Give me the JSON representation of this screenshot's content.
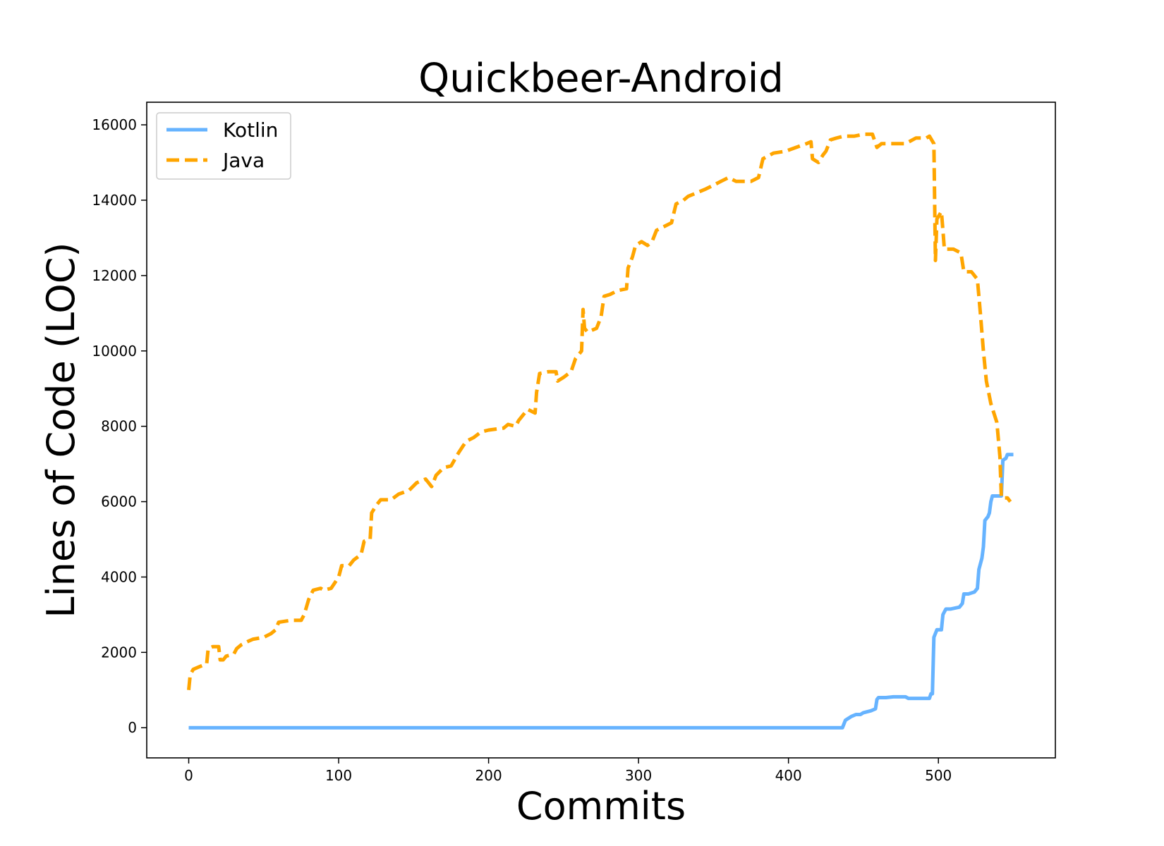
{
  "chart_data": {
    "type": "line",
    "title": "Quickbeer-Android",
    "xlabel": "Commits",
    "ylabel": "Lines of Code (LOC)",
    "xlim": [
      -28,
      578
    ],
    "ylim": [
      -800,
      16600
    ],
    "xticks": [
      0,
      100,
      200,
      300,
      400,
      500
    ],
    "yticks": [
      0,
      2000,
      4000,
      6000,
      8000,
      10000,
      12000,
      14000,
      16000
    ],
    "grid": false,
    "legend": "upper left",
    "series": [
      {
        "name": "Kotlin",
        "color": "#66b3ff",
        "style": "solid",
        "points": [
          [
            0,
            0
          ],
          [
            436,
            0
          ],
          [
            437,
            100
          ],
          [
            438,
            200
          ],
          [
            442,
            300
          ],
          [
            445,
            350
          ],
          [
            448,
            350
          ],
          [
            450,
            400
          ],
          [
            455,
            450
          ],
          [
            458,
            500
          ],
          [
            459,
            750
          ],
          [
            460,
            800
          ],
          [
            465,
            800
          ],
          [
            470,
            820
          ],
          [
            478,
            820
          ],
          [
            480,
            780
          ],
          [
            490,
            780
          ],
          [
            494,
            780
          ],
          [
            495,
            900
          ],
          [
            496,
            900
          ],
          [
            497,
            2400
          ],
          [
            499,
            2600
          ],
          [
            502,
            2600
          ],
          [
            503,
            3000
          ],
          [
            505,
            3150
          ],
          [
            508,
            3150
          ],
          [
            514,
            3200
          ],
          [
            516,
            3300
          ],
          [
            517,
            3550
          ],
          [
            520,
            3550
          ],
          [
            524,
            3600
          ],
          [
            526,
            3700
          ],
          [
            527,
            4200
          ],
          [
            529,
            4500
          ],
          [
            530,
            4800
          ],
          [
            531,
            5500
          ],
          [
            533,
            5600
          ],
          [
            534,
            5700
          ],
          [
            535,
            6000
          ],
          [
            536,
            6150
          ],
          [
            542,
            6150
          ],
          [
            543,
            7100
          ],
          [
            545,
            7150
          ],
          [
            546,
            7250
          ],
          [
            550,
            7250
          ]
        ]
      },
      {
        "name": "Java",
        "color": "#ffa500",
        "style": "dashed",
        "points": [
          [
            0,
            1000
          ],
          [
            1,
            1400
          ],
          [
            3,
            1550
          ],
          [
            6,
            1600
          ],
          [
            9,
            1650
          ],
          [
            12,
            1700
          ],
          [
            13,
            2100
          ],
          [
            16,
            2150
          ],
          [
            20,
            2150
          ],
          [
            21,
            1800
          ],
          [
            23,
            1800
          ],
          [
            25,
            1900
          ],
          [
            30,
            1950
          ],
          [
            32,
            2100
          ],
          [
            35,
            2200
          ],
          [
            40,
            2300
          ],
          [
            43,
            2350
          ],
          [
            50,
            2400
          ],
          [
            55,
            2500
          ],
          [
            58,
            2600
          ],
          [
            60,
            2800
          ],
          [
            68,
            2850
          ],
          [
            75,
            2850
          ],
          [
            77,
            3000
          ],
          [
            80,
            3400
          ],
          [
            83,
            3650
          ],
          [
            88,
            3700
          ],
          [
            90,
            3650
          ],
          [
            95,
            3700
          ],
          [
            100,
            4000
          ],
          [
            102,
            4300
          ],
          [
            107,
            4300
          ],
          [
            110,
            4450
          ],
          [
            115,
            4600
          ],
          [
            117,
            4950
          ],
          [
            121,
            5000
          ],
          [
            122,
            5700
          ],
          [
            125,
            5900
          ],
          [
            128,
            6050
          ],
          [
            135,
            6050
          ],
          [
            140,
            6200
          ],
          [
            147,
            6300
          ],
          [
            152,
            6500
          ],
          [
            158,
            6600
          ],
          [
            162,
            6400
          ],
          [
            165,
            6700
          ],
          [
            170,
            6900
          ],
          [
            175,
            6950
          ],
          [
            180,
            7300
          ],
          [
            185,
            7600
          ],
          [
            190,
            7700
          ],
          [
            195,
            7850
          ],
          [
            200,
            7900
          ],
          [
            210,
            7950
          ],
          [
            213,
            8050
          ],
          [
            218,
            8000
          ],
          [
            220,
            8150
          ],
          [
            226,
            8450
          ],
          [
            231,
            8350
          ],
          [
            232,
            8900
          ],
          [
            234,
            9400
          ],
          [
            240,
            9450
          ],
          [
            245,
            9450
          ],
          [
            246,
            9200
          ],
          [
            250,
            9300
          ],
          [
            255,
            9450
          ],
          [
            258,
            9800
          ],
          [
            262,
            10000
          ],
          [
            263,
            11100
          ],
          [
            264,
            10600
          ],
          [
            266,
            10500
          ],
          [
            272,
            10600
          ],
          [
            275,
            10900
          ],
          [
            277,
            11450
          ],
          [
            281,
            11500
          ],
          [
            286,
            11600
          ],
          [
            292,
            11650
          ],
          [
            293,
            12200
          ],
          [
            296,
            12500
          ],
          [
            298,
            12800
          ],
          [
            302,
            12900
          ],
          [
            306,
            12800
          ],
          [
            309,
            12900
          ],
          [
            312,
            13200
          ],
          [
            317,
            13300
          ],
          [
            322,
            13400
          ],
          [
            325,
            13900
          ],
          [
            330,
            14000
          ],
          [
            333,
            14100
          ],
          [
            339,
            14200
          ],
          [
            345,
            14300
          ],
          [
            350,
            14400
          ],
          [
            355,
            14500
          ],
          [
            360,
            14600
          ],
          [
            365,
            14500
          ],
          [
            375,
            14500
          ],
          [
            380,
            14600
          ],
          [
            383,
            15100
          ],
          [
            390,
            15250
          ],
          [
            398,
            15300
          ],
          [
            405,
            15400
          ],
          [
            412,
            15500
          ],
          [
            415,
            15550
          ],
          [
            416,
            15100
          ],
          [
            420,
            15000
          ],
          [
            423,
            15200
          ],
          [
            425,
            15300
          ],
          [
            428,
            15600
          ],
          [
            432,
            15650
          ],
          [
            437,
            15700
          ],
          [
            444,
            15700
          ],
          [
            450,
            15750
          ],
          [
            456,
            15750
          ],
          [
            459,
            15400
          ],
          [
            462,
            15500
          ],
          [
            470,
            15500
          ],
          [
            478,
            15500
          ],
          [
            485,
            15650
          ],
          [
            492,
            15650
          ],
          [
            494,
            15700
          ],
          [
            497,
            15500
          ],
          [
            498,
            12400
          ],
          [
            499,
            13500
          ],
          [
            502,
            13700
          ],
          [
            504,
            12700
          ],
          [
            510,
            12700
          ],
          [
            515,
            12600
          ],
          [
            517,
            12100
          ],
          [
            522,
            12100
          ],
          [
            526,
            11900
          ],
          [
            528,
            11000
          ],
          [
            530,
            10000
          ],
          [
            532,
            9200
          ],
          [
            535,
            8600
          ],
          [
            539,
            8100
          ],
          [
            541,
            7200
          ],
          [
            542,
            6100
          ],
          [
            546,
            6100
          ],
          [
            548,
            6000
          ]
        ]
      }
    ]
  }
}
